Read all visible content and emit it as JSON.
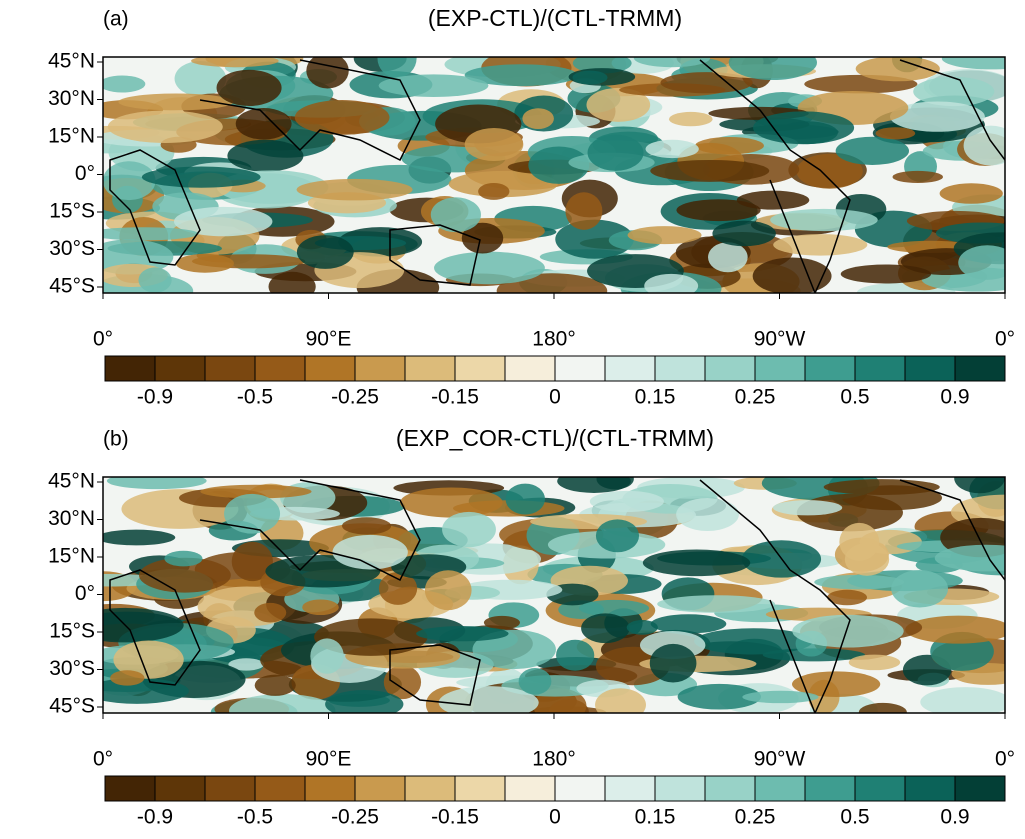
{
  "colorbar_colors": [
    "#432505",
    "#5e3608",
    "#7a4710",
    "#955a18",
    "#b07526",
    "#c99a4e",
    "#dcbb7a",
    "#ecd7a8",
    "#f6eedb",
    "#f2f5f2",
    "#dceeea",
    "#bfe3dc",
    "#98d2c7",
    "#6dbcaf",
    "#3e9d90",
    "#1f8074",
    "#0b6258",
    "#033f36"
  ],
  "panels": [
    {
      "label": "(a)",
      "title": "(EXP-CTL)/(CTL-TRMM)",
      "lat_labels": [
        "45°N",
        "30°N",
        "15°N",
        "0°",
        "15°S",
        "30°S",
        "45°S"
      ],
      "lon_labels": [
        "0°",
        "90°E",
        "180°",
        "90°W",
        "0°"
      ],
      "colorbar_labels": [
        "-0.9",
        "-0.5",
        "-0.25",
        "-0.15",
        "0",
        "0.15",
        "0.25",
        "0.5",
        "0.9"
      ]
    },
    {
      "label": "(b)",
      "title": "(EXP_COR-CTL)/(CTL-TRMM)",
      "lat_labels": [
        "45°N",
        "30°N",
        "15°N",
        "0°",
        "15°S",
        "30°S",
        "45°S"
      ],
      "lon_labels": [
        "0°",
        "90°E",
        "180°",
        "90°W",
        "0°"
      ],
      "colorbar_labels": [
        "-0.9",
        "-0.5",
        "-0.25",
        "-0.15",
        "0",
        "0.15",
        "0.25",
        "0.5",
        "0.9"
      ]
    }
  ]
}
